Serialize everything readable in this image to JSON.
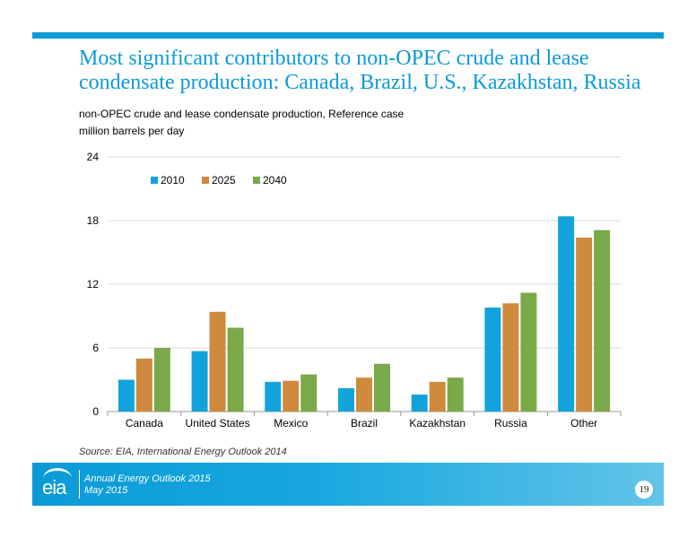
{
  "slide": {
    "title": "Most significant contributors to non-OPEC crude and lease condensate production: Canada, Brazil, U.S., Kazakhstan, Russia",
    "subtitle_line1": "non-OPEC crude and lease condensate production, Reference case",
    "subtitle_line2": "million barrels per day",
    "source": "Source:  EIA, International Energy Outlook 2014",
    "accent_color": "#0d9ad7"
  },
  "footer": {
    "logo_text": "eia",
    "line1": "Annual Energy Outlook 2015",
    "line2": "May 2015",
    "page_number": "19"
  },
  "chart_data": {
    "type": "bar",
    "title": "",
    "xlabel": "",
    "ylabel": "",
    "categories": [
      "Canada",
      "United States",
      "Mexico",
      "Brazil",
      "Kazakhstan",
      "Russia",
      "Other"
    ],
    "series": [
      {
        "name": "2010",
        "color": "#13a3dc",
        "values": [
          3.0,
          5.7,
          2.8,
          2.2,
          1.6,
          9.8,
          18.4
        ]
      },
      {
        "name": "2025",
        "color": "#cf8a3d",
        "values": [
          5.0,
          9.4,
          2.9,
          3.2,
          2.8,
          10.2,
          16.4
        ]
      },
      {
        "name": "2040",
        "color": "#79a949",
        "values": [
          6.0,
          7.9,
          3.5,
          4.5,
          3.2,
          11.2,
          17.1
        ]
      }
    ],
    "yticks": [
      "0",
      "6",
      "12",
      "18",
      "24"
    ],
    "ylim": [
      0,
      24
    ],
    "grid": true,
    "legend_position": "top-left"
  }
}
